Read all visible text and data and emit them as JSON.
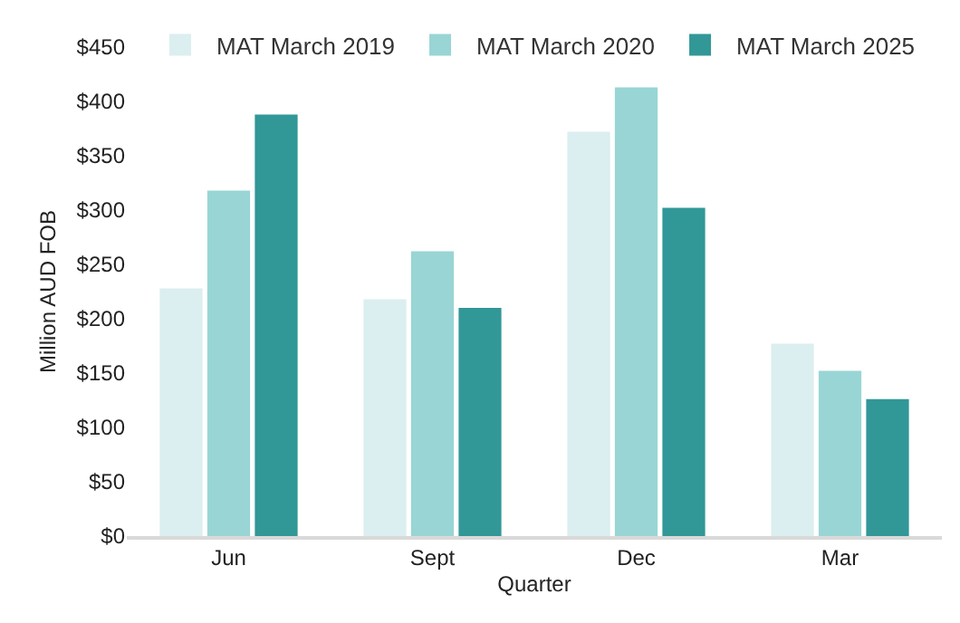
{
  "chart_data": {
    "type": "bar",
    "xlabel": "Quarter",
    "ylabel": "Million AUD FOB",
    "categories": [
      "Jun",
      "Sept",
      "Dec",
      "Mar"
    ],
    "series": [
      {
        "name": "MAT March 2019",
        "color": "#dbeef0",
        "values": [
          228,
          218,
          372,
          177
        ]
      },
      {
        "name": "MAT March 2020",
        "color": "#99d5d5",
        "values": [
          318,
          262,
          413,
          152
        ]
      },
      {
        "name": "MAT March 2025",
        "color": "#329797",
        "values": [
          388,
          210,
          302,
          126
        ]
      }
    ],
    "ylim": [
      0,
      450
    ],
    "yticks": [
      {
        "value": 0,
        "label": "$0"
      },
      {
        "value": 50,
        "label": "$50"
      },
      {
        "value": 100,
        "label": "$100"
      },
      {
        "value": 150,
        "label": "$150"
      },
      {
        "value": 200,
        "label": "$200"
      },
      {
        "value": 250,
        "label": "$250"
      },
      {
        "value": 300,
        "label": "$300"
      },
      {
        "value": 350,
        "label": "$350"
      },
      {
        "value": 400,
        "label": "$400"
      },
      {
        "value": 450,
        "label": "$450"
      }
    ],
    "grid": false,
    "legend": "top"
  }
}
